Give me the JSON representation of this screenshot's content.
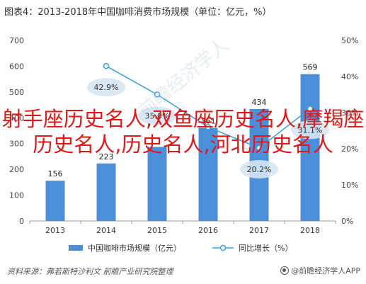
{
  "chart_data": {
    "type": "bar",
    "title": "图表4：2013-2018年中国咖啡消费市场规模（单位：亿元，%）",
    "categories": [
      "2013",
      "2014",
      "2015",
      "2016",
      "2017",
      "2018"
    ],
    "series": [
      {
        "name": "中国咖啡市场规模（亿元）",
        "type": "bar",
        "values": [
          156,
          223,
          287,
          361,
          434,
          569
        ],
        "labels": [
          "156",
          "223",
          "",
          "361",
          "434",
          "569"
        ],
        "axis": "left",
        "color": "#4a8fd8"
      },
      {
        "name": "同比增长（%）",
        "type": "line",
        "values": [
          null,
          42.9,
          35.0,
          26.0,
          20.2,
          31.1
        ],
        "labels": [
          "",
          "42.9%",
          "35.0%",
          "",
          "20.2%",
          "31.1%"
        ],
        "axis": "right",
        "color": "#3b9fd8"
      }
    ],
    "left_axis": {
      "ylim": [
        0,
        700
      ],
      "ticks": [
        "0",
        "100",
        "200",
        "300",
        "400",
        "500",
        "600",
        "700"
      ]
    },
    "right_axis": {
      "ylim": [
        0,
        50
      ],
      "ticks": [
        "0%",
        "10%",
        "20%",
        "30%",
        "40%",
        "50%"
      ]
    },
    "grid": false,
    "legend_position": "bottom"
  },
  "legend": {
    "bar_label": "中国咖啡市场规模（亿元）",
    "line_label": "同比增长（%）"
  },
  "source": "资料来源：弗若斯特沙利文 前瞻产业研究院整理",
  "brand": "@前瞻经济学人APP",
  "overlay_text": "射手座历史名人,双鱼座历史名人,摩羯座历史名人,历史名人,河北历史名人",
  "watermark": "前瞻经济学人",
  "colors": {
    "bar": "#4a8fd8",
    "line": "#3b9fd8",
    "overlay": "#e01818",
    "bubble": "#d6e6f2"
  }
}
